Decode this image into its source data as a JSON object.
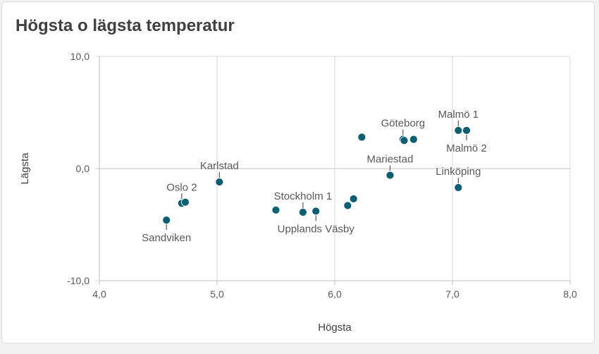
{
  "title": "Högsta o lägsta temperatur",
  "chart_data": {
    "type": "scatter",
    "title": "Högsta o lägsta temperatur",
    "xlabel": "Högsta",
    "ylabel": "Lägsta",
    "xlim": [
      4.0,
      8.0
    ],
    "ylim": [
      -10.0,
      10.0
    ],
    "xticks": [
      4.0,
      5.0,
      6.0,
      7.0,
      8.0
    ],
    "yticks": [
      -10.0,
      0.0,
      10.0
    ],
    "xtick_labels": [
      "4,0",
      "5,0",
      "6,0",
      "7,0",
      "8,0"
    ],
    "ytick_labels": [
      "-10,0",
      "0,0",
      "10,0"
    ],
    "grid": true,
    "color": "#0b5f73",
    "points": [
      {
        "x": 4.57,
        "y": -4.6,
        "label": "Sandviken",
        "label_pos": "below"
      },
      {
        "x": 4.7,
        "y": -3.1,
        "label": "Oslo 2",
        "label_pos": "above"
      },
      {
        "x": 4.73,
        "y": -3.0,
        "label": "",
        "label_pos": ""
      },
      {
        "x": 5.02,
        "y": -1.2,
        "label": "Karlstad",
        "label_pos": "above"
      },
      {
        "x": 5.5,
        "y": -3.7,
        "label": "",
        "label_pos": ""
      },
      {
        "x": 5.73,
        "y": -3.9,
        "label": "Stockholm 1",
        "label_pos": "above"
      },
      {
        "x": 5.84,
        "y": -3.8,
        "label": "Upplands Väsby",
        "label_pos": "below"
      },
      {
        "x": 6.11,
        "y": -3.3,
        "label": "",
        "label_pos": ""
      },
      {
        "x": 6.16,
        "y": -2.7,
        "label": "",
        "label_pos": ""
      },
      {
        "x": 6.23,
        "y": 2.8,
        "label": "",
        "label_pos": ""
      },
      {
        "x": 6.47,
        "y": -0.6,
        "label": "Mariestad",
        "label_pos": "above"
      },
      {
        "x": 6.58,
        "y": 2.6,
        "label": "Göteborg",
        "label_pos": "above"
      },
      {
        "x": 6.59,
        "y": 2.5,
        "label": "",
        "label_pos": ""
      },
      {
        "x": 6.67,
        "y": 2.6,
        "label": "",
        "label_pos": ""
      },
      {
        "x": 7.05,
        "y": 3.4,
        "label": "Malmö 1",
        "label_pos": "above"
      },
      {
        "x": 7.12,
        "y": 3.4,
        "label": "Malmö 2",
        "label_pos": "below"
      },
      {
        "x": 7.05,
        "y": -1.7,
        "label": "Linköping",
        "label_pos": "above"
      }
    ]
  }
}
